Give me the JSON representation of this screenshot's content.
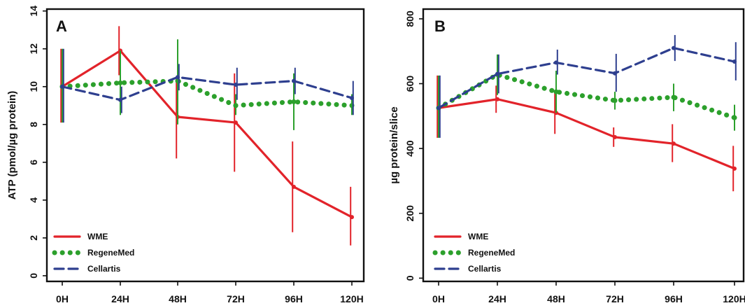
{
  "chart_data": [
    {
      "type": "line",
      "panel_label": "A",
      "title": "",
      "xlabel": "",
      "ylabel": "ATP (pmol/µg protein)",
      "categories": [
        "0H",
        "24H",
        "48H",
        "72H",
        "96H",
        "120H"
      ],
      "ylim": [
        -0.3,
        14.1
      ],
      "yticks": [
        "0",
        "2",
        "4",
        "6",
        "8",
        "10",
        "12",
        "14"
      ],
      "grid": false,
      "legend_position": "bottom-left",
      "series": [
        {
          "name": "WME",
          "color": "#e2232a",
          "style": "solid",
          "values": [
            10.0,
            11.9,
            8.4,
            8.1,
            4.7,
            3.1
          ],
          "error_low": [
            8.1,
            10.6,
            6.2,
            5.5,
            2.3,
            1.6
          ],
          "error_high": [
            12.0,
            13.2,
            10.4,
            10.7,
            7.1,
            4.7
          ]
        },
        {
          "name": "RegeneMed",
          "color": "#2ca02c",
          "style": "dotted",
          "values": [
            10.0,
            10.2,
            10.3,
            9.0,
            9.2,
            9.0
          ],
          "error_low": [
            8.1,
            8.5,
            8.0,
            8.5,
            7.7,
            8.5
          ],
          "error_high": [
            12.0,
            11.9,
            12.5,
            9.6,
            10.7,
            9.6
          ]
        },
        {
          "name": "Cellartis",
          "color": "#2e3f8f",
          "style": "dashed",
          "values": [
            10.0,
            9.3,
            10.5,
            10.1,
            10.3,
            9.4
          ],
          "error_low": [
            8.1,
            8.6,
            9.8,
            9.3,
            9.6,
            8.5
          ],
          "error_high": [
            12.0,
            10.0,
            11.2,
            11.0,
            11.0,
            10.3
          ]
        }
      ]
    },
    {
      "type": "line",
      "panel_label": "B",
      "title": "",
      "xlabel": "",
      "ylabel": "µg protein/slice",
      "categories": [
        "0H",
        "24H",
        "48H",
        "72H",
        "96H",
        "120H"
      ],
      "ylim": [
        -10,
        830
      ],
      "yticks": [
        "0",
        "200",
        "400",
        "600",
        "800"
      ],
      "grid": false,
      "legend_position": "bottom-left",
      "series": [
        {
          "name": "WME",
          "color": "#e2232a",
          "style": "solid",
          "values": [
            525,
            552,
            510,
            435,
            415,
            338
          ],
          "error_low": [
            433,
            510,
            445,
            405,
            358,
            268
          ],
          "error_high": [
            625,
            594,
            575,
            465,
            475,
            408
          ]
        },
        {
          "name": "RegeneMed",
          "color": "#2ca02c",
          "style": "dotted",
          "values": [
            525,
            628,
            575,
            548,
            558,
            495
          ],
          "error_low": [
            433,
            565,
            510,
            520,
            515,
            455
          ],
          "error_high": [
            625,
            690,
            640,
            575,
            600,
            535
          ]
        },
        {
          "name": "Cellartis",
          "color": "#2e3f8f",
          "style": "dashed",
          "values": [
            525,
            630,
            665,
            632,
            710,
            668
          ],
          "error_low": [
            433,
            570,
            628,
            575,
            670,
            610
          ],
          "error_high": [
            625,
            690,
            705,
            692,
            750,
            728
          ]
        }
      ]
    }
  ]
}
